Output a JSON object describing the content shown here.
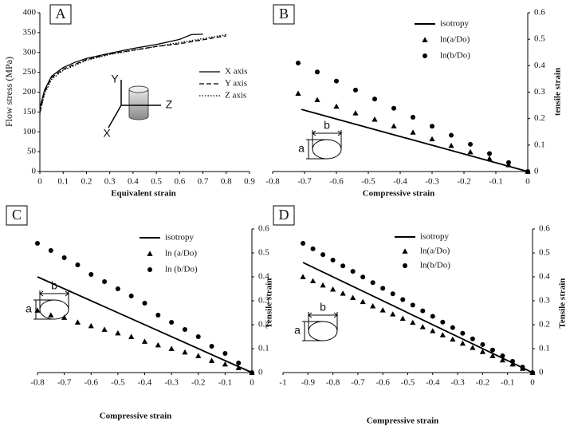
{
  "chart_data": [
    {
      "type": "line",
      "panel": "A",
      "x_label": "Equivalent strain",
      "y_label": "Flow stress (MPa)",
      "xlim": [
        0,
        0.9
      ],
      "xticks": [
        0,
        0.1,
        0.2,
        0.3,
        0.4,
        0.5,
        0.6,
        0.7,
        0.8,
        0.9
      ],
      "ylim": [
        0,
        400
      ],
      "yticks": [
        0,
        50,
        100,
        150,
        200,
        250,
        300,
        350,
        400
      ],
      "inset_labels": [
        "Y",
        "Z",
        "X"
      ],
      "series": [
        {
          "name": "X axis",
          "color": "#000000",
          "dash": "solid",
          "x": [
            0,
            0.02,
            0.05,
            0.1,
            0.15,
            0.2,
            0.3,
            0.4,
            0.5,
            0.6,
            0.65,
            0.7
          ],
          "values": [
            160,
            205,
            240,
            262,
            275,
            285,
            298,
            310,
            320,
            333,
            345,
            346
          ]
        },
        {
          "name": "Y axis",
          "color": "#000000",
          "dash": "dashed",
          "x": [
            0,
            0.02,
            0.05,
            0.1,
            0.2,
            0.3,
            0.4,
            0.5,
            0.6,
            0.7,
            0.8
          ],
          "values": [
            150,
            200,
            236,
            258,
            282,
            296,
            306,
            315,
            322,
            332,
            342
          ]
        },
        {
          "name": "Z axis",
          "color": "#000000",
          "dash": "dotted",
          "x": [
            0,
            0.02,
            0.05,
            0.1,
            0.2,
            0.3,
            0.4,
            0.5,
            0.6,
            0.7,
            0.8
          ],
          "values": [
            145,
            195,
            232,
            255,
            280,
            295,
            305,
            315,
            325,
            335,
            345
          ]
        }
      ]
    },
    {
      "type": "scatter",
      "panel": "B",
      "x_label": "Compressive strain",
      "y_label": "tensile strain",
      "xlim": [
        -0.8,
        0
      ],
      "xticks": [
        -0.8,
        -0.7,
        -0.6,
        -0.5,
        -0.4,
        -0.3,
        -0.2,
        -0.1,
        0
      ],
      "ylim": [
        0,
        0.6
      ],
      "yticks": [
        0,
        0.1,
        0.2,
        0.3,
        0.4,
        0.5,
        0.6
      ],
      "inset_labels": [
        "a",
        "b"
      ],
      "series": [
        {
          "name": "isotropy",
          "color": "#000000",
          "marker": "line",
          "x": [
            -0.71,
            0
          ],
          "values": [
            0.235,
            0
          ]
        },
        {
          "name": "ln(a/Do)",
          "color": "#000000",
          "marker": "triangle",
          "x": [
            -0.72,
            -0.66,
            -0.6,
            -0.54,
            -0.48,
            -0.42,
            -0.36,
            -0.3,
            -0.24,
            -0.18,
            -0.12,
            -0.06,
            0
          ],
          "values": [
            0.295,
            0.271,
            0.246,
            0.221,
            0.197,
            0.172,
            0.148,
            0.123,
            0.098,
            0.074,
            0.049,
            0.025,
            0
          ]
        },
        {
          "name": "ln(b/Do)",
          "color": "#000000",
          "marker": "circle",
          "x": [
            -0.72,
            -0.66,
            -0.6,
            -0.54,
            -0.48,
            -0.42,
            -0.36,
            -0.3,
            -0.24,
            -0.18,
            -0.12,
            -0.06,
            0
          ],
          "values": [
            0.41,
            0.376,
            0.342,
            0.308,
            0.274,
            0.239,
            0.205,
            0.171,
            0.137,
            0.103,
            0.068,
            0.034,
            0
          ]
        }
      ]
    },
    {
      "type": "scatter",
      "panel": "C",
      "x_label": "Compressive strain",
      "y_label": "Tensile strain",
      "xlim": [
        -0.8,
        0
      ],
      "xticks": [
        -0.8,
        -0.7,
        -0.6,
        -0.5,
        -0.4,
        -0.3,
        -0.2,
        -0.1,
        0
      ],
      "ylim": [
        0,
        0.6
      ],
      "yticks": [
        0,
        0.1,
        0.2,
        0.3,
        0.4,
        0.5,
        0.6
      ],
      "inset_labels": [
        "a",
        "b"
      ],
      "series": [
        {
          "name": "isotropy",
          "color": "#000000",
          "marker": "line",
          "x": [
            -0.8,
            0
          ],
          "values": [
            0.4,
            0
          ]
        },
        {
          "name": "ln (a/Do)",
          "color": "#000000",
          "marker": "triangle",
          "x": [
            -0.8,
            -0.75,
            -0.7,
            -0.65,
            -0.6,
            -0.55,
            -0.5,
            -0.45,
            -0.4,
            -0.35,
            -0.3,
            -0.25,
            -0.2,
            -0.15,
            -0.1,
            -0.05,
            0
          ],
          "values": [
            0.26,
            0.24,
            0.23,
            0.21,
            0.195,
            0.18,
            0.165,
            0.15,
            0.13,
            0.115,
            0.1,
            0.085,
            0.07,
            0.05,
            0.035,
            0.02,
            0
          ]
        },
        {
          "name": "ln (b/Do)",
          "color": "#000000",
          "marker": "circle",
          "x": [
            -0.8,
            -0.75,
            -0.7,
            -0.65,
            -0.6,
            -0.55,
            -0.5,
            -0.45,
            -0.4,
            -0.35,
            -0.3,
            -0.25,
            -0.2,
            -0.15,
            -0.1,
            -0.05,
            0
          ],
          "values": [
            0.54,
            0.51,
            0.48,
            0.45,
            0.41,
            0.38,
            0.35,
            0.32,
            0.29,
            0.24,
            0.21,
            0.18,
            0.15,
            0.11,
            0.08,
            0.04,
            0
          ]
        }
      ]
    },
    {
      "type": "scatter",
      "panel": "D",
      "x_label": "Compressive strain",
      "y_label": "Tensile strain",
      "xlim": [
        -1,
        0
      ],
      "xticks": [
        -1,
        -0.9,
        -0.8,
        -0.7,
        -0.6,
        -0.5,
        -0.4,
        -0.3,
        -0.2,
        -0.1,
        0
      ],
      "ylim": [
        0,
        0.6
      ],
      "yticks": [
        0,
        0.1,
        0.2,
        0.3,
        0.4,
        0.5,
        0.6
      ],
      "inset_labels": [
        "a",
        "b"
      ],
      "series": [
        {
          "name": "isotropy",
          "color": "#000000",
          "marker": "line",
          "x": [
            -0.92,
            0
          ],
          "values": [
            0.46,
            0
          ]
        },
        {
          "name": "ln(a/Do)",
          "color": "#000000",
          "marker": "triangle",
          "x": [
            -0.92,
            -0.88,
            -0.84,
            -0.8,
            -0.76,
            -0.72,
            -0.68,
            -0.64,
            -0.6,
            -0.56,
            -0.52,
            -0.48,
            -0.44,
            -0.4,
            -0.36,
            -0.32,
            -0.28,
            -0.24,
            -0.2,
            -0.16,
            -0.12,
            -0.08,
            -0.04,
            0
          ],
          "values": [
            0.4,
            0.383,
            0.365,
            0.348,
            0.331,
            0.313,
            0.296,
            0.278,
            0.261,
            0.244,
            0.226,
            0.209,
            0.191,
            0.174,
            0.157,
            0.139,
            0.122,
            0.104,
            0.087,
            0.07,
            0.052,
            0.035,
            0.017,
            0
          ]
        },
        {
          "name": "ln(b/Do)",
          "color": "#000000",
          "marker": "circle",
          "x": [
            -0.92,
            -0.88,
            -0.84,
            -0.8,
            -0.76,
            -0.72,
            -0.68,
            -0.64,
            -0.6,
            -0.56,
            -0.52,
            -0.48,
            -0.44,
            -0.4,
            -0.36,
            -0.32,
            -0.28,
            -0.24,
            -0.2,
            -0.16,
            -0.12,
            -0.08,
            -0.04,
            0
          ],
          "values": [
            0.54,
            0.517,
            0.493,
            0.47,
            0.446,
            0.423,
            0.399,
            0.376,
            0.352,
            0.329,
            0.305,
            0.282,
            0.258,
            0.235,
            0.211,
            0.188,
            0.164,
            0.141,
            0.117,
            0.094,
            0.07,
            0.047,
            0.023,
            0
          ]
        }
      ]
    }
  ]
}
